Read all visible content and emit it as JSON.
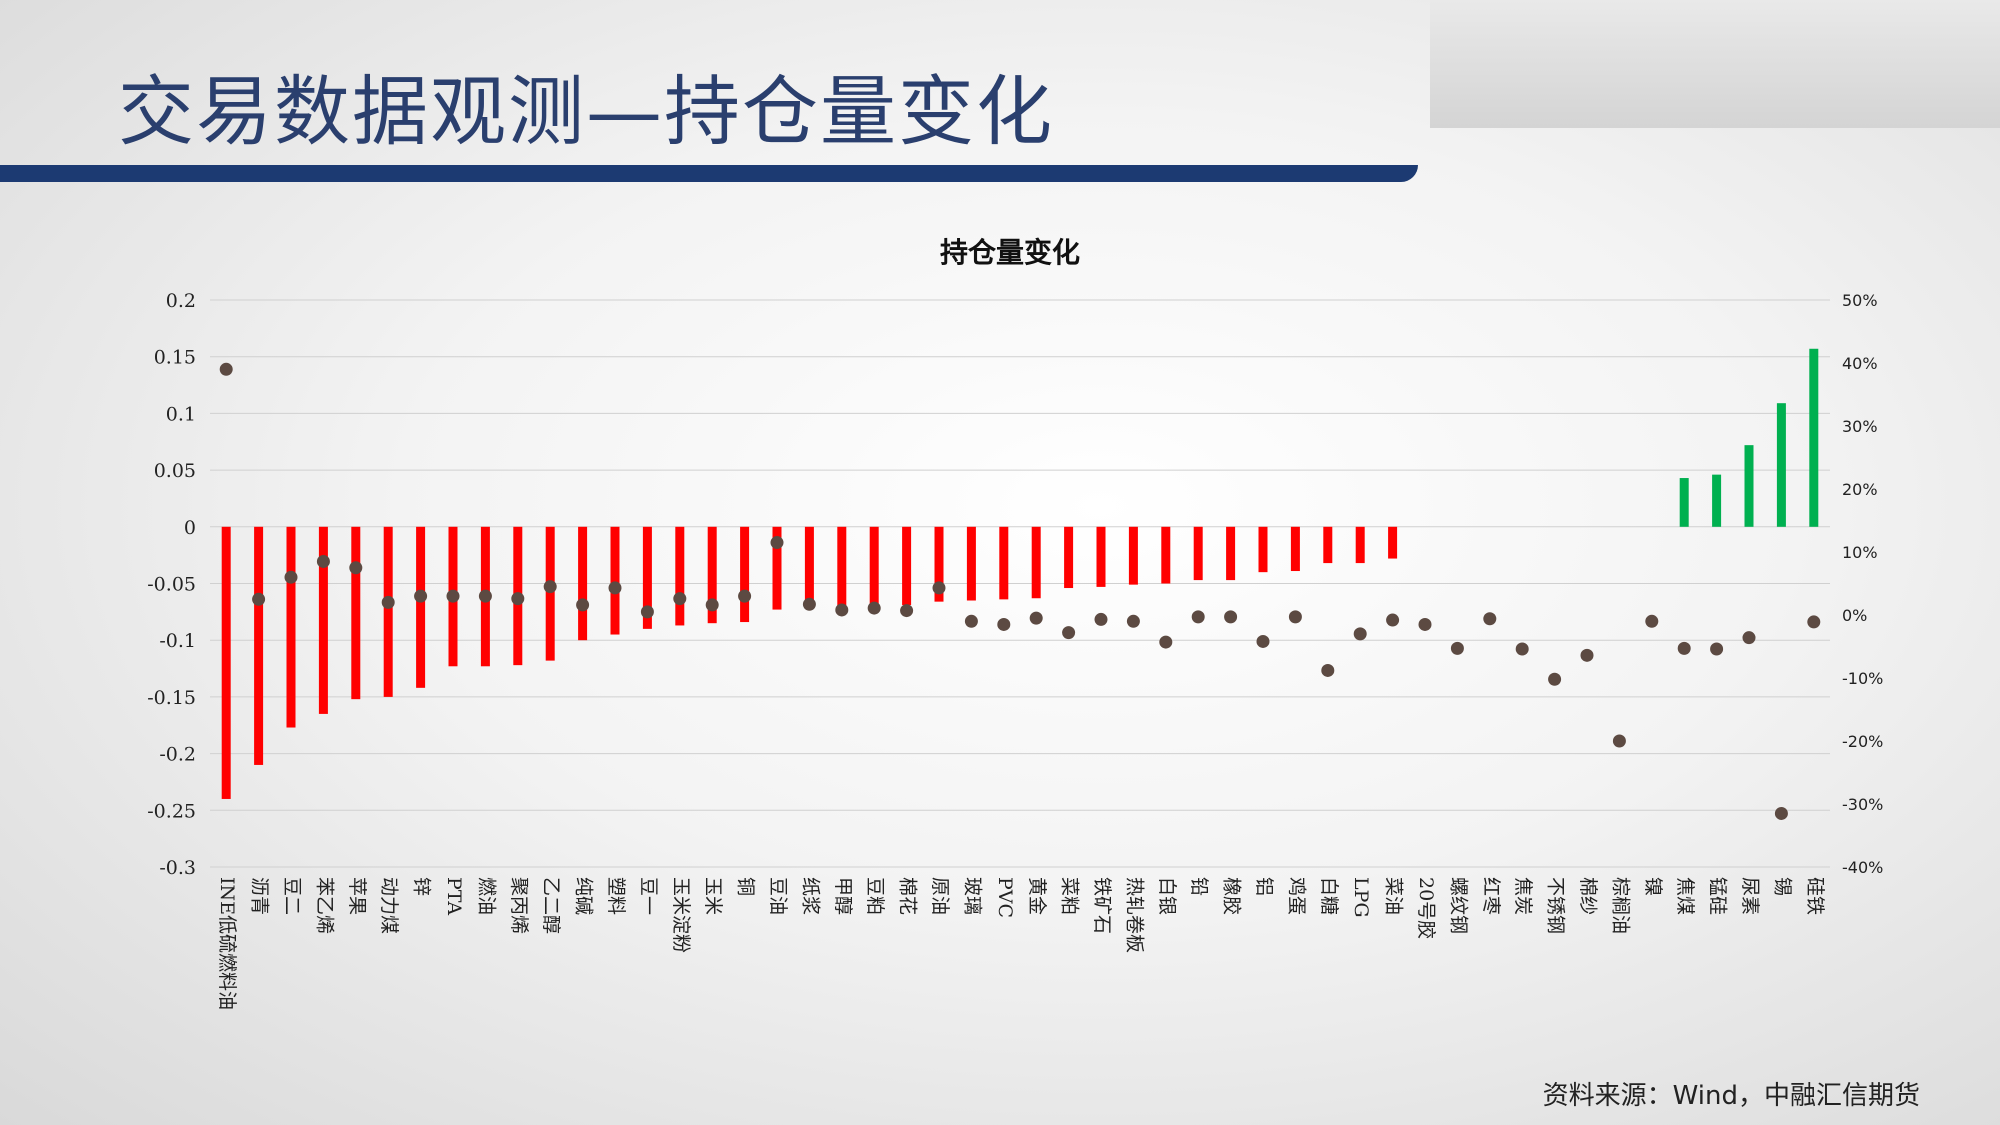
{
  "page": {
    "title": "交易数据观测—持仓量变化",
    "source": "资料来源：Wind，中融汇信期货"
  },
  "colors": {
    "title": "#2a3f6e",
    "title_bar": "#1c3a72",
    "bar_negative": "#ff0000",
    "bar_positive": "#00b050",
    "marker": "#5c4a42"
  },
  "chart_data": {
    "type": "bar",
    "title": "持仓量变化",
    "categories": [
      "INE低硫燃料油",
      "沥青",
      "豆二",
      "苯乙烯",
      "苹果",
      "动力煤",
      "锌",
      "PTA",
      "燃油",
      "聚丙烯",
      "乙二醇",
      "纯碱",
      "塑料",
      "豆一",
      "玉米淀粉",
      "玉米",
      "铜",
      "豆油",
      "纸浆",
      "甲醇",
      "豆粕",
      "棉花",
      "原油",
      "玻璃",
      "PVC",
      "黄金",
      "菜粕",
      "铁矿石",
      "热轧卷板",
      "白银",
      "铅",
      "橡胶",
      "铝",
      "鸡蛋",
      "白糖",
      "LPG",
      "菜油",
      "20号胶",
      "螺纹钢",
      "红枣",
      "焦炭",
      "不锈钢",
      "棉纱",
      "棕榈油",
      "镍",
      "焦煤",
      "锰硅",
      "尿素",
      "锡",
      "硅铁"
    ],
    "left_axis": {
      "ylim": [
        -0.3,
        0.2
      ],
      "ticks": [
        "0.2",
        "0.15",
        "0.1",
        "0.05",
        "0",
        "-0.05",
        "-0.1",
        "-0.15",
        "-0.2",
        "-0.25",
        "-0.3"
      ]
    },
    "right_axis": {
      "ylim": [
        -40,
        50
      ],
      "ticks": [
        "50%",
        "40%",
        "30%",
        "20%",
        "10%",
        "0%",
        "-10%",
        "-20%",
        "-30%",
        "-40%"
      ]
    },
    "series": [
      {
        "type": "bar",
        "axis": "left",
        "values": [
          -0.24,
          -0.21,
          -0.177,
          -0.165,
          -0.152,
          -0.15,
          -0.142,
          -0.123,
          -0.123,
          -0.122,
          -0.118,
          -0.1,
          -0.095,
          -0.09,
          -0.087,
          -0.085,
          -0.084,
          -0.073,
          -0.072,
          -0.071,
          -0.07,
          -0.069,
          -0.066,
          -0.065,
          -0.064,
          -0.063,
          -0.054,
          -0.053,
          -0.051,
          -0.05,
          -0.047,
          -0.047,
          -0.04,
          -0.039,
          -0.032,
          -0.032,
          -0.028,
          0,
          0,
          0,
          0,
          0,
          0,
          0,
          0,
          0.043,
          0.046,
          0.072,
          0.109,
          0.157
        ]
      },
      {
        "type": "scatter",
        "axis": "right",
        "values": [
          39,
          2.5,
          6,
          8.5,
          7.5,
          2,
          3,
          3,
          3,
          2.6,
          4.5,
          1.6,
          4.3,
          0.5,
          2.6,
          1.6,
          3,
          11.5,
          1.7,
          0.8,
          1.1,
          0.7,
          4.3,
          -1,
          -1.5,
          -0.5,
          -2.8,
          -0.7,
          -1,
          -4.3,
          -0.3,
          -0.3,
          -4.2,
          -0.3,
          -8.8,
          -3,
          -0.8,
          -1.5,
          -5.3,
          -0.6,
          -5.4,
          -10.2,
          -6.4,
          -20,
          -1,
          -5.3,
          -5.4,
          -3.6,
          -31.5,
          -1.1
        ]
      }
    ]
  }
}
